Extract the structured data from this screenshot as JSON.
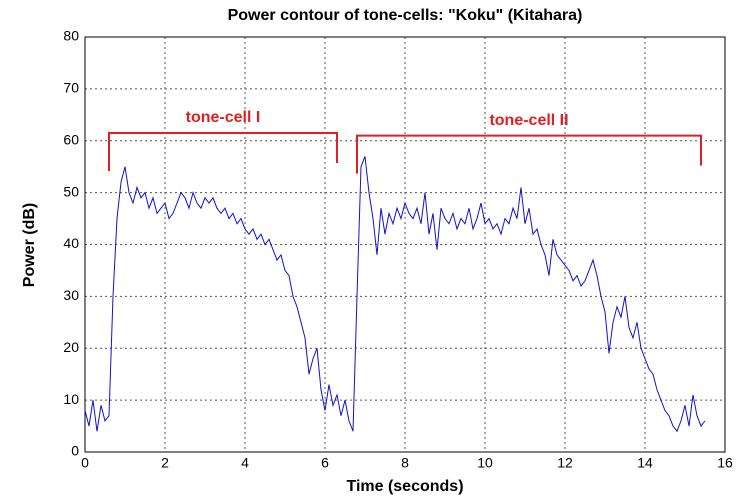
{
  "chart_data": {
    "type": "line",
    "title": "Power contour of tone-cells: \"Koku\" (Kitahara)",
    "xlabel": "Time (seconds)",
    "ylabel": "Power (dB)",
    "x": [
      0,
      0.1,
      0.2,
      0.3,
      0.4,
      0.5,
      0.6,
      0.7,
      0.8,
      0.9,
      1,
      1.1,
      1.2,
      1.3,
      1.4,
      1.5,
      1.6,
      1.7,
      1.8,
      1.9,
      2,
      2.1,
      2.2,
      2.3,
      2.4,
      2.5,
      2.6,
      2.7,
      2.8,
      2.9,
      3,
      3.1,
      3.2,
      3.3,
      3.4,
      3.5,
      3.6,
      3.7,
      3.8,
      3.9,
      4,
      4.1,
      4.2,
      4.3,
      4.4,
      4.5,
      4.6,
      4.7,
      4.8,
      4.9,
      5,
      5.1,
      5.2,
      5.3,
      5.4,
      5.5,
      5.6,
      5.7,
      5.8,
      5.9,
      6,
      6.1,
      6.2,
      6.3,
      6.4,
      6.5,
      6.6,
      6.7,
      6.8,
      6.9,
      7,
      7.1,
      7.2,
      7.3,
      7.4,
      7.5,
      7.6,
      7.7,
      7.8,
      7.9,
      8,
      8.1,
      8.2,
      8.3,
      8.4,
      8.5,
      8.6,
      8.7,
      8.8,
      8.9,
      9,
      9.1,
      9.2,
      9.3,
      9.4,
      9.5,
      9.6,
      9.7,
      9.8,
      9.9,
      10,
      10.1,
      10.2,
      10.3,
      10.4,
      10.5,
      10.6,
      10.7,
      10.8,
      10.9,
      11,
      11.1,
      11.2,
      11.3,
      11.4,
      11.5,
      11.6,
      11.7,
      11.8,
      11.9,
      12,
      12.1,
      12.2,
      12.3,
      12.4,
      12.5,
      12.6,
      12.7,
      12.8,
      12.9,
      13,
      13.1,
      13.2,
      13.3,
      13.4,
      13.5,
      13.6,
      13.7,
      13.8,
      13.9,
      14,
      14.1,
      14.2,
      14.3,
      14.4,
      14.5,
      14.6,
      14.7,
      14.8,
      14.9,
      15,
      15.1,
      15.2,
      15.3,
      15.4,
      15.5
    ],
    "series": [
      {
        "name": "Power",
        "color": "#1010d0",
        "values": [
          8,
          5,
          10,
          4,
          9,
          6,
          7,
          30,
          45,
          52,
          55,
          50,
          48,
          51,
          49,
          50,
          47,
          49,
          46,
          47,
          48,
          45,
          46,
          48,
          50,
          49,
          47,
          50,
          48,
          47,
          49,
          48,
          49,
          47,
          46,
          47,
          45,
          46,
          44,
          45,
          43,
          42,
          43,
          41,
          42,
          40,
          41,
          39,
          37,
          38,
          35,
          34,
          30,
          28,
          25,
          22,
          15,
          18,
          20,
          12,
          8,
          13,
          9,
          11,
          7,
          10,
          6,
          4,
          30,
          55,
          57,
          50,
          45,
          38,
          47,
          42,
          46,
          44,
          47,
          45,
          48,
          46,
          45,
          47,
          44,
          50,
          42,
          46,
          39,
          47,
          45,
          44,
          46,
          43,
          45,
          44,
          47,
          43,
          45,
          48,
          44,
          45,
          43,
          44,
          42,
          45,
          44,
          47,
          45,
          51,
          44,
          47,
          42,
          43,
          40,
          38,
          34,
          41,
          38,
          37,
          36,
          35,
          33,
          34,
          32,
          33,
          35,
          37,
          34,
          30,
          27,
          19,
          25,
          28,
          26,
          30,
          24,
          22,
          25,
          20,
          18,
          16,
          15,
          12,
          10,
          8,
          7,
          5,
          4,
          6,
          9,
          5,
          11,
          7,
          5,
          6
        ]
      }
    ],
    "xlim": [
      0,
      16
    ],
    "ylim": [
      0,
      80
    ],
    "xticks": [
      0,
      2,
      4,
      6,
      8,
      10,
      12,
      14,
      16
    ],
    "yticks": [
      0,
      10,
      20,
      30,
      40,
      50,
      60,
      70,
      80
    ],
    "grid": true,
    "annotations": [
      {
        "text": "tone-cell I",
        "x": [
          0.6,
          6.3
        ],
        "y": 61.5,
        "color": "#e02020"
      },
      {
        "text": "tone-cell II",
        "x": [
          6.8,
          15.4
        ],
        "y": 61,
        "color": "#e02020"
      }
    ]
  }
}
